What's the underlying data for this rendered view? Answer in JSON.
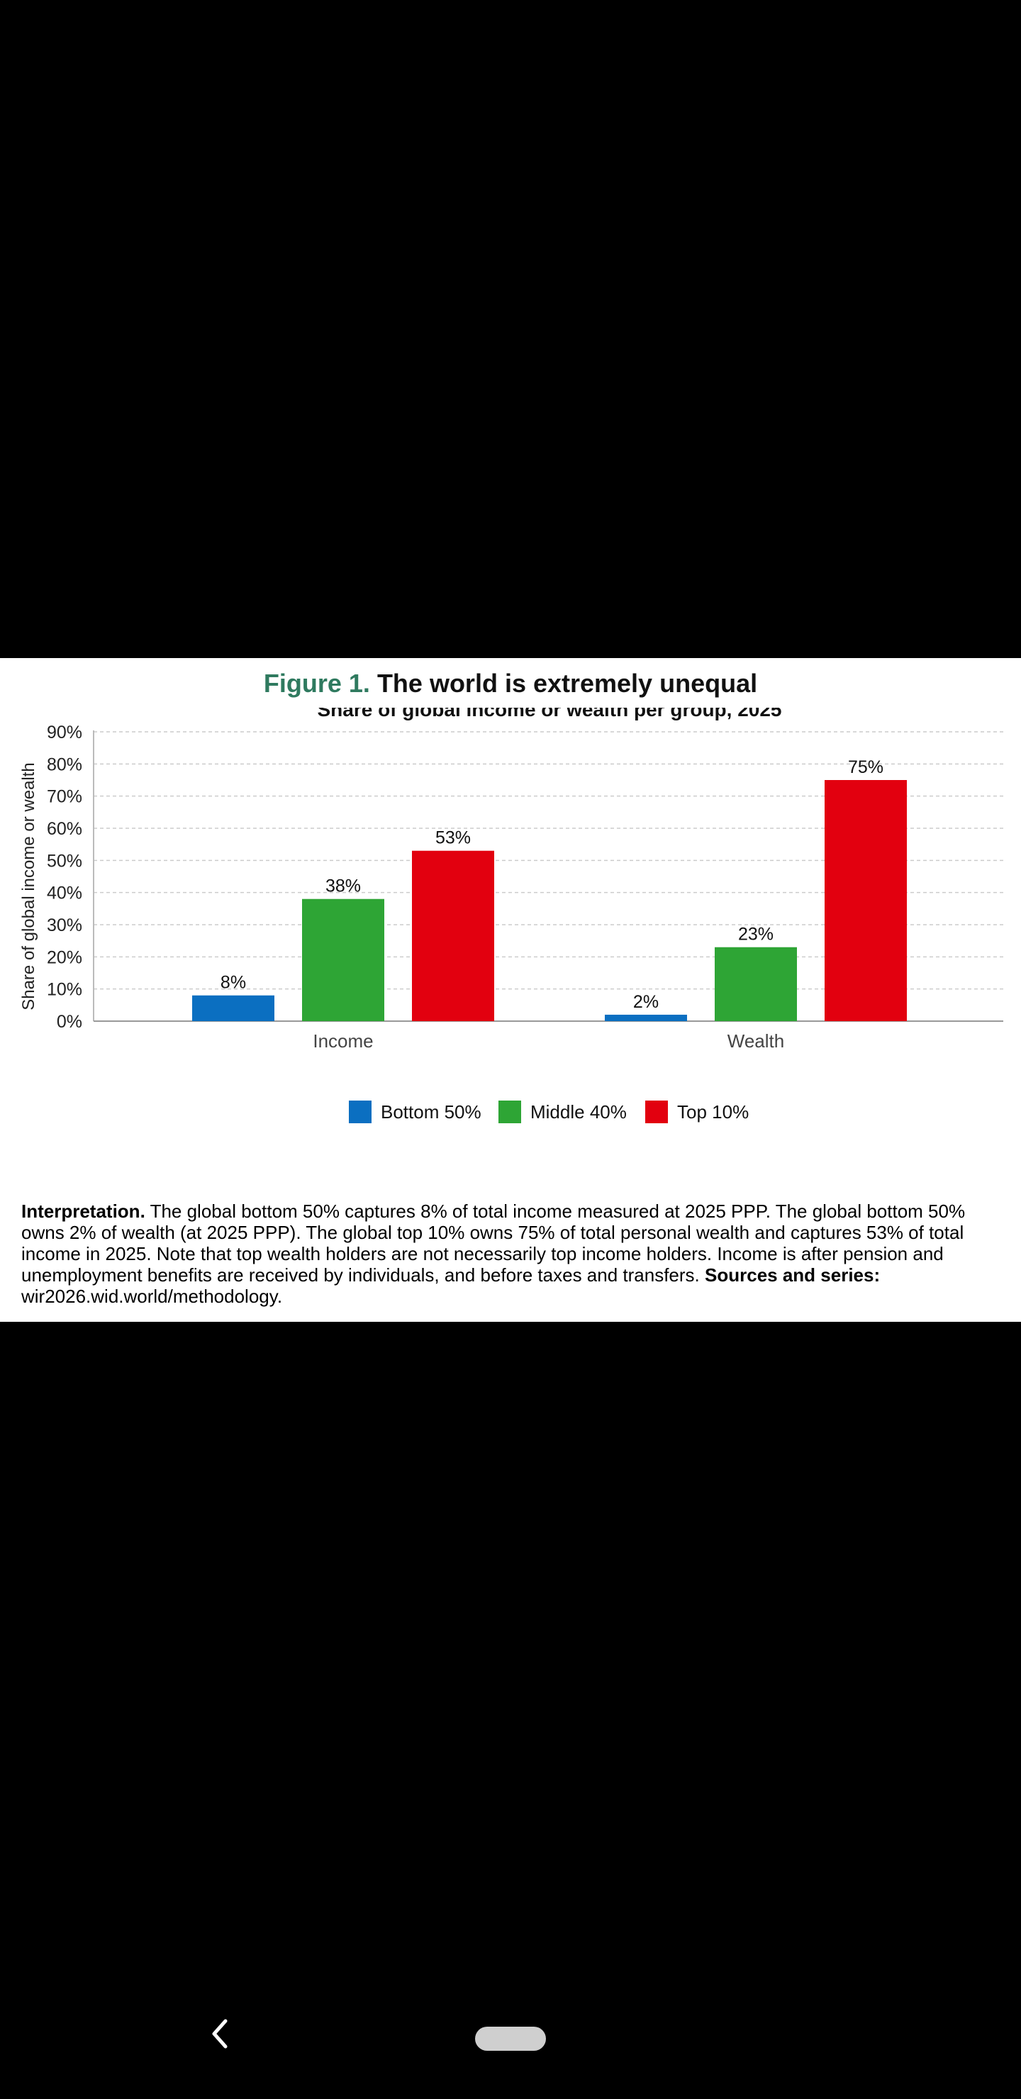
{
  "figure": {
    "label": "Figure 1.",
    "title": "The world is extremely unequal"
  },
  "chart_data": {
    "type": "bar",
    "title": "Share of global income or wealth per group, 2025",
    "xlabel": "",
    "ylabel": "Share of global income or wealth",
    "ylim": [
      0,
      90
    ],
    "yticks": [
      "0%",
      "10%",
      "20%",
      "30%",
      "40%",
      "50%",
      "60%",
      "70%",
      "80%",
      "90%"
    ],
    "categories": [
      "Income",
      "Wealth"
    ],
    "grid": true,
    "legend_position": "bottom",
    "series": [
      {
        "name": "Bottom 50%",
        "color": "#0b6fc1",
        "values": [
          8,
          2
        ],
        "labels": [
          "8%",
          "2%"
        ]
      },
      {
        "name": "Middle 40%",
        "color": "#2ea535",
        "values": [
          38,
          23
        ],
        "labels": [
          "38%",
          "23%"
        ]
      },
      {
        "name": "Top 10%",
        "color": "#e2000f",
        "values": [
          53,
          75
        ],
        "labels": [
          "53%",
          "75%"
        ]
      }
    ]
  },
  "caption": {
    "lead": "Interpretation.",
    "body": "The global bottom 50% captures 8% of total income measured at 2025 PPP. The global bottom 50% owns 2% of wealth (at 2025 PPP). The global top 10% owns 75% of total personal wealth and captures 53% of total income in 2025. Note that top wealth holders are not necessarily top income holders. Income is after pension and unemployment benefits are received by individuals, and before taxes and transfers.",
    "sources_label": "Sources and series:",
    "sources_url": "wir2026.wid.world/methodology."
  },
  "nav": {
    "back_icon": "chevron-left-icon",
    "home_icon": "home-pill-icon"
  }
}
